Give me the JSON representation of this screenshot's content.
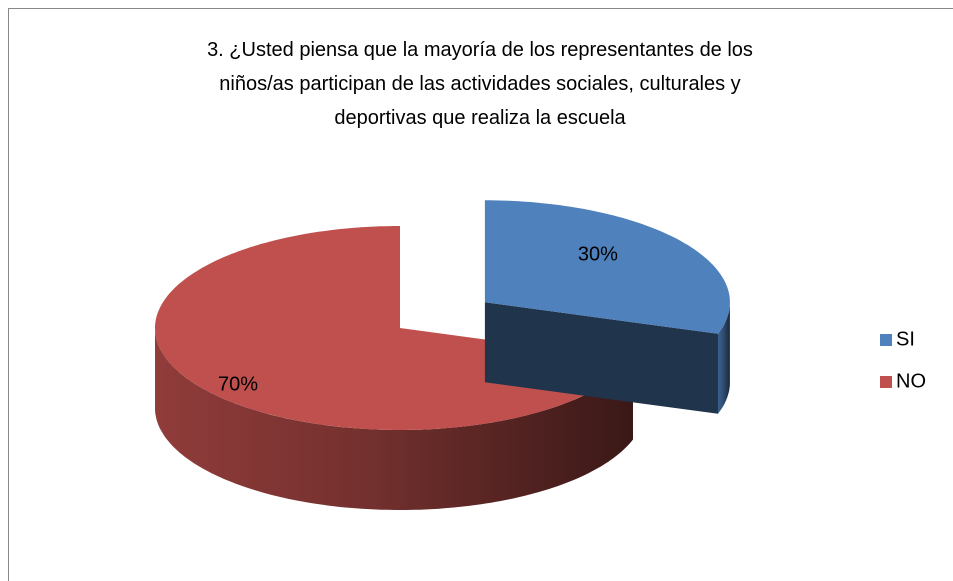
{
  "chart_data": {
    "type": "pie3d",
    "title": "3. ¿Usted piensa que la mayoría de los representantes de los niños/as participan de las actividades sociales, culturales y deportivas que realiza la escuela",
    "categories": [
      "SI",
      "NO"
    ],
    "values": [
      30,
      70
    ],
    "value_labels": [
      "30%",
      "70%"
    ],
    "colors": [
      "#4f81bd",
      "#c0504d"
    ],
    "legend": "right"
  }
}
